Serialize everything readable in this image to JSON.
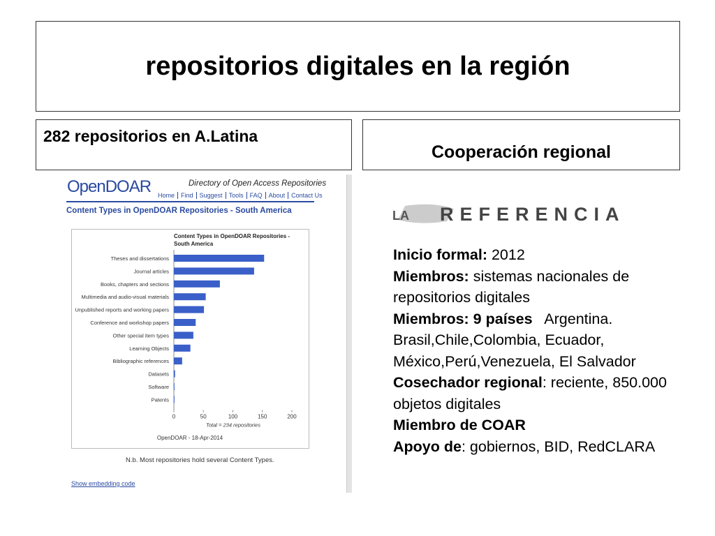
{
  "title": "repositorios digitales en la región",
  "left_heading": "282 repositorios en A.Latina",
  "right_heading": "Cooperación regional",
  "opendoar": {
    "logo": "OpenDOAR",
    "directory": "Directory of Open Access Repositories",
    "nav": [
      "Home",
      "Find",
      "Suggest",
      "Tools",
      "FAQ",
      "About",
      "Contact Us"
    ],
    "page_title": "Content Types in OpenDOAR Repositories - South America",
    "note": "N.b. Most repositories hold several Content Types.",
    "link": "Show embedding code"
  },
  "chart_data": {
    "type": "bar",
    "orientation": "horizontal",
    "title": "Content Types in OpenDOAR Repositories - South America",
    "categories": [
      "Theses and dissertations",
      "Journal articles",
      "Books, chapters and sections",
      "Multimedia and audio-visual materials",
      "Unpublished reports and working papers",
      "Conference and workshop papers",
      "Other special item types",
      "Learning Objects",
      "Bibliographic references",
      "Datasets",
      "Software",
      "Patents"
    ],
    "values": [
      153,
      136,
      78,
      54,
      51,
      37,
      33,
      28,
      14,
      2,
      1,
      1
    ],
    "color": "#3a5fc8",
    "xlim": [
      0,
      200
    ],
    "xticks": [
      0,
      50,
      100,
      150,
      200
    ],
    "xlabel": "Total = 234 repositories",
    "caption": "OpenDOAR - 18-Apr-2014"
  },
  "logo": {
    "small": "LA",
    "big": "REFERENCIA"
  },
  "info": [
    {
      "label": "Inicio formal:",
      "text": " 2012"
    },
    {
      "label": "Miembros:",
      "text": " sistemas nacionales de repositorios digitales"
    },
    {
      "label": "Miembros: 9 países",
      "text": "   Argentina. Brasil,Chile,Colombia, Ecuador, México,Perú,Venezuela, El Salvador"
    },
    {
      "label": "Cosechador regional",
      "text": ": reciente, 850.000 objetos digitales"
    },
    {
      "label": "Miembro de COAR"
    },
    {
      "label": "Apoyo de",
      "text": ": gobiernos, BID, RedCLARA"
    }
  ]
}
